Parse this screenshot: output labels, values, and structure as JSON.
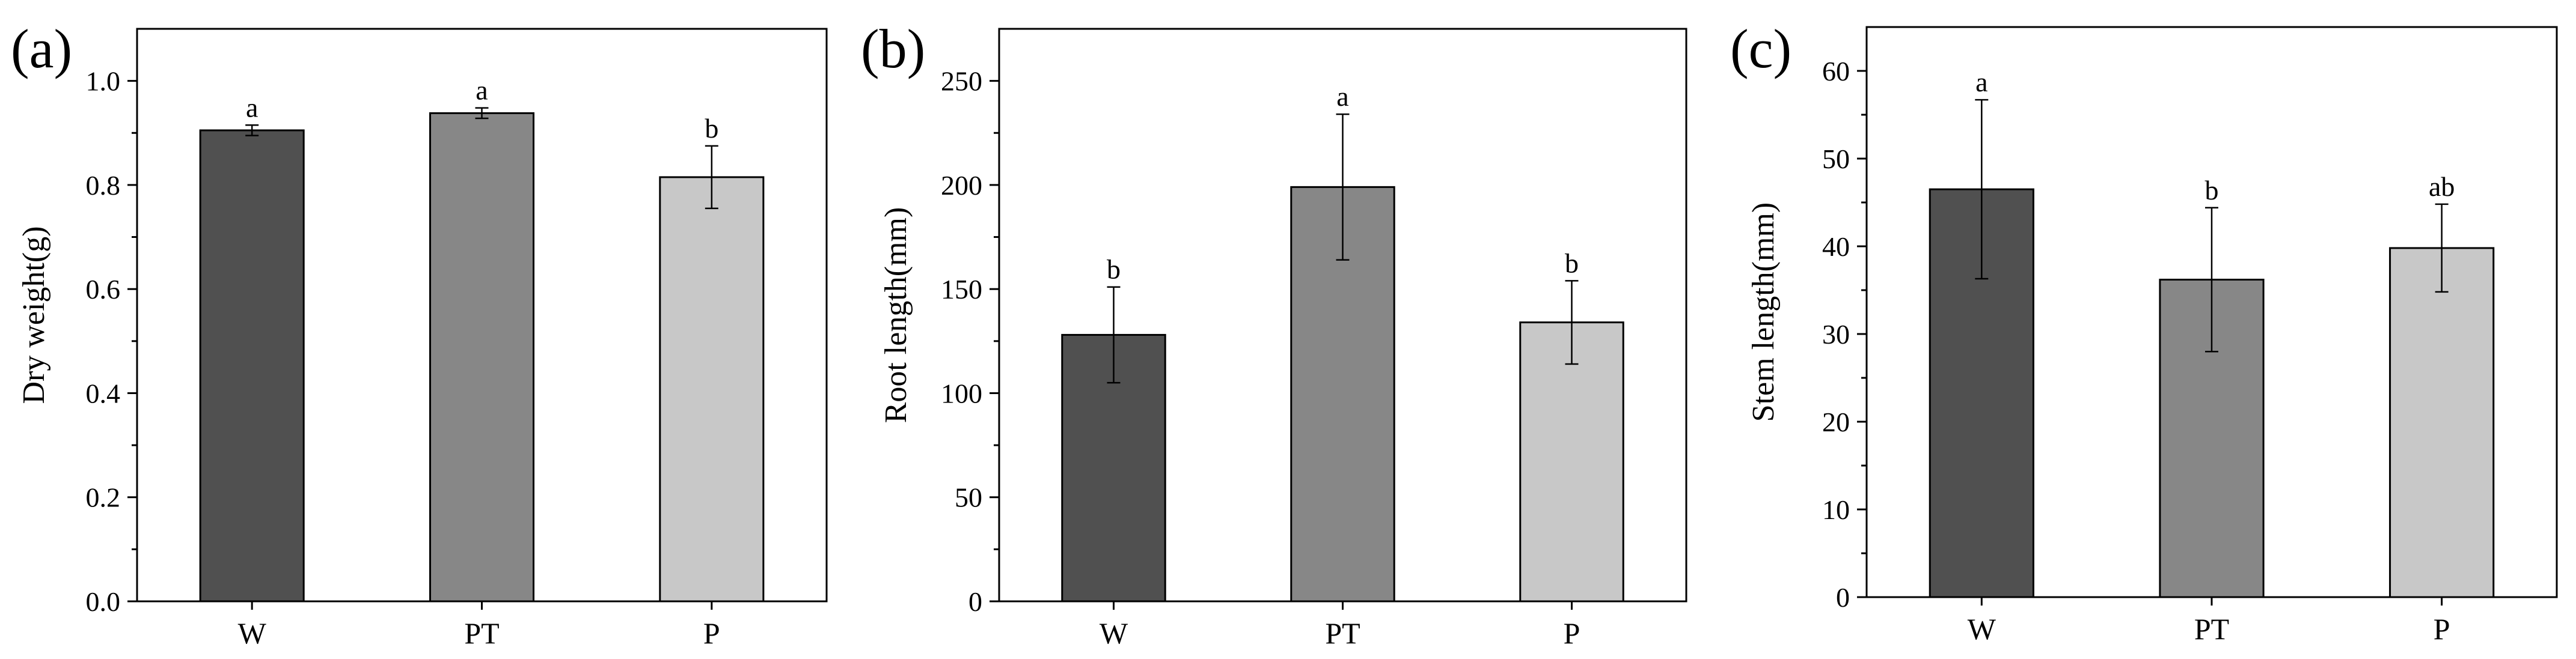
{
  "chart_data": [
    {
      "type": "bar",
      "panel_label": "(a)",
      "categories": [
        "W",
        "PT",
        "P"
      ],
      "values": [
        0.905,
        0.938,
        0.815
      ],
      "errors": [
        0.01,
        0.01,
        0.06
      ],
      "letters": [
        "a",
        "a",
        "b"
      ],
      "ylabel": "Dry weight(g)",
      "xlabel": "",
      "ylim": [
        0,
        1.1
      ],
      "yticks": [
        0.0,
        0.2,
        0.4,
        0.6,
        0.8,
        1.0
      ],
      "ytick_labels": [
        "0.0",
        "0.2",
        "0.4",
        "0.6",
        "0.8",
        "1.0"
      ],
      "colors": [
        "#505050",
        "#878787",
        "#c8c8c8"
      ],
      "grid": false
    },
    {
      "type": "bar",
      "panel_label": "(b)",
      "categories": [
        "W",
        "PT",
        "P"
      ],
      "values": [
        128,
        199,
        134
      ],
      "errors": [
        23,
        35,
        20
      ],
      "letters": [
        "b",
        "a",
        "b"
      ],
      "ylabel": "Root length(mm)",
      "xlabel": "",
      "ylim": [
        0,
        275
      ],
      "yticks": [
        0,
        50,
        100,
        150,
        200,
        250
      ],
      "ytick_labels": [
        "0",
        "50",
        "100",
        "150",
        "200",
        "250"
      ],
      "colors": [
        "#505050",
        "#878787",
        "#c8c8c8"
      ],
      "grid": false
    },
    {
      "type": "bar",
      "panel_label": "(c)",
      "categories": [
        "W",
        "PT",
        "P"
      ],
      "values": [
        46.5,
        36.2,
        39.8
      ],
      "errors": [
        10.2,
        8.2,
        5.0
      ],
      "letters": [
        "a",
        "b",
        "ab"
      ],
      "ylabel": "Stem length(mm)",
      "xlabel": "",
      "ylim": [
        0,
        65
      ],
      "yticks": [
        0,
        10,
        20,
        30,
        40,
        50,
        60
      ],
      "ytick_labels": [
        "0",
        "10",
        "20",
        "30",
        "40",
        "50",
        "60"
      ],
      "colors": [
        "#505050",
        "#878787",
        "#c8c8c8"
      ],
      "grid": false
    }
  ]
}
